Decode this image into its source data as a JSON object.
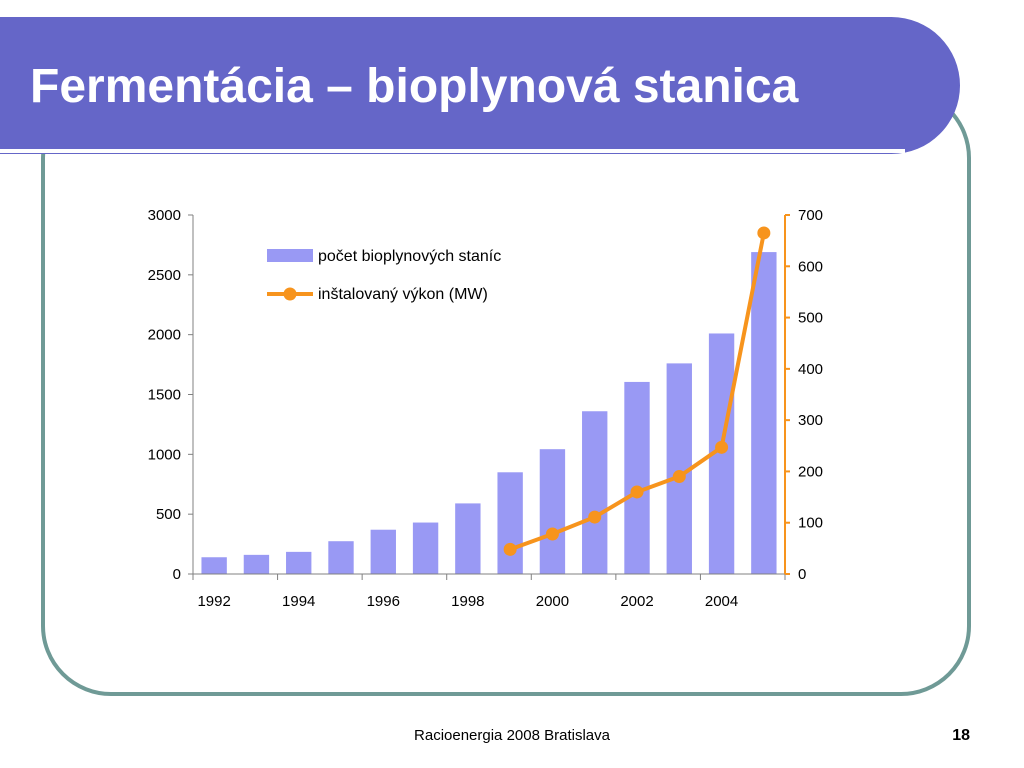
{
  "slide": {
    "title": "Fermentácia – bioplynová stanica",
    "footer": "Racioenergia 2008 Bratislava",
    "page_number": "18"
  },
  "colors": {
    "header": "#6566c8",
    "frame": "#6f9a96",
    "bars": "#9999f4",
    "line": "#f7941d"
  },
  "chart_data": {
    "type": "bar",
    "x": [
      1992,
      1993,
      1994,
      1995,
      1996,
      1997,
      1998,
      1999,
      2000,
      2001,
      2002,
      2003,
      2004,
      2005
    ],
    "x_tick_labels": [
      "1992",
      "1994",
      "1996",
      "1998",
      "2000",
      "2002",
      "2004"
    ],
    "series": [
      {
        "name": "počet bioplynových staníc",
        "type": "bar",
        "axis": "left",
        "values": [
          140,
          160,
          185,
          274,
          370,
          430,
          590,
          850,
          1043,
          1360,
          1605,
          1760,
          2010,
          2690
        ]
      },
      {
        "name": "inštalovaný výkon (MW)",
        "type": "line",
        "axis": "right",
        "marker": "circle",
        "x": [
          1999,
          2000,
          2001,
          2002,
          2003,
          2004,
          2005
        ],
        "values": [
          48,
          78,
          111,
          160,
          190,
          247,
          665
        ]
      }
    ],
    "y_left": {
      "ylim": [
        0,
        3000
      ],
      "ticks": [
        0,
        500,
        1000,
        1500,
        2000,
        2500,
        3000
      ]
    },
    "y_right": {
      "ylim": [
        0,
        700
      ],
      "ticks": [
        0,
        100,
        200,
        300,
        400,
        500,
        600,
        700
      ]
    },
    "grid": false,
    "legend": "top-left inside"
  }
}
